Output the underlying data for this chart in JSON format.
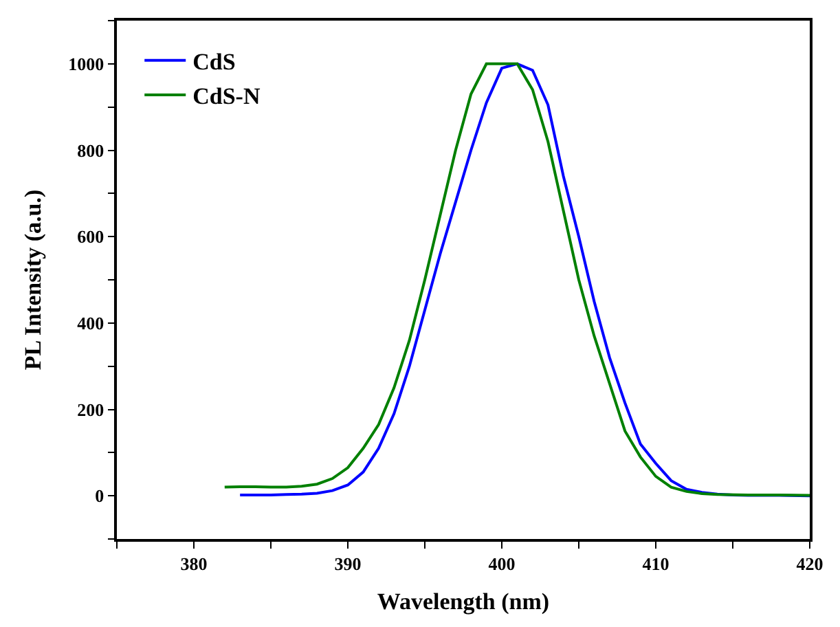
{
  "chart_data": {
    "type": "line",
    "xlabel": "Wavelength (nm)",
    "ylabel": "PL Intensity (a.u.)",
    "xlim": [
      375,
      420
    ],
    "ylim": [
      -100,
      1100
    ],
    "xticks": [
      {
        "value": 375,
        "label": null
      },
      380,
      {
        "value": 385,
        "label": null
      },
      390,
      {
        "value": 395,
        "label": null
      },
      400,
      {
        "value": 405,
        "label": null
      },
      410,
      {
        "value": 415,
        "label": null
      },
      420
    ],
    "yticks": [
      {
        "value": -100,
        "label": null
      },
      0,
      {
        "value": 100,
        "label": null
      },
      200,
      {
        "value": 300,
        "label": null
      },
      400,
      {
        "value": 500,
        "label": null
      },
      600,
      {
        "value": 700,
        "label": null
      },
      800,
      {
        "value": 900,
        "label": null
      },
      1000,
      {
        "value": 1100,
        "label": null
      }
    ],
    "legend": "top left",
    "marker": "none",
    "line_style": "solid",
    "series": [
      {
        "name": "CdS",
        "color": "#0000ff",
        "x": [
          383,
          384,
          385,
          386,
          387,
          388,
          389,
          390,
          391,
          392,
          393,
          394,
          395,
          396,
          397,
          398,
          399,
          400,
          401,
          402,
          403,
          404,
          405,
          406,
          407,
          408,
          409,
          410,
          411,
          412,
          413,
          414,
          415,
          416,
          418,
          420
        ],
        "values": [
          2,
          2,
          2,
          3,
          4,
          6,
          12,
          25,
          55,
          110,
          190,
          300,
          430,
          560,
          680,
          800,
          910,
          990,
          1000,
          985,
          905,
          740,
          600,
          450,
          320,
          215,
          120,
          75,
          35,
          15,
          8,
          4,
          2,
          1,
          1,
          0
        ]
      },
      {
        "name": "CdS-N",
        "color": "#008000",
        "x": [
          382,
          383,
          384,
          385,
          386,
          387,
          388,
          389,
          390,
          391,
          392,
          393,
          394,
          395,
          396,
          397,
          398,
          399,
          400,
          401,
          402,
          403,
          404,
          405,
          406,
          407,
          408,
          409,
          410,
          411,
          412,
          413,
          414,
          416,
          418,
          420
        ],
        "values": [
          20,
          21,
          21,
          20,
          20,
          22,
          27,
          40,
          65,
          110,
          165,
          250,
          360,
          500,
          650,
          800,
          930,
          1000,
          1000,
          1000,
          940,
          820,
          660,
          500,
          370,
          260,
          150,
          90,
          45,
          20,
          10,
          5,
          3,
          2,
          2,
          1
        ]
      }
    ]
  }
}
